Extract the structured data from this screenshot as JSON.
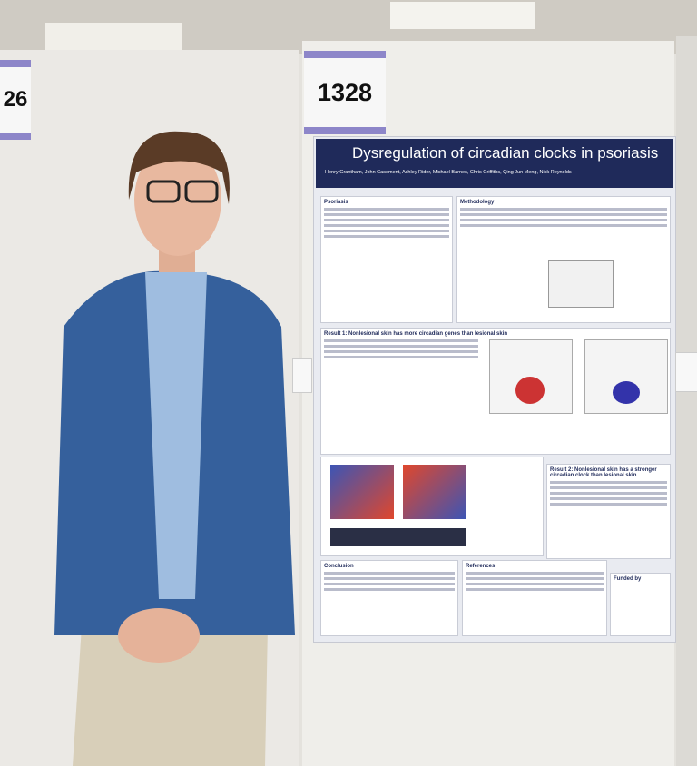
{
  "tags": {
    "left": "26",
    "right": "1328"
  },
  "poster": {
    "title": "Dysregulation of circadian clocks in psoriasis",
    "authors": "Henry Grantham, John Casement, Ashley Rider, Michael Barnes, Chris Griffiths, Qing Jun Meng, Nick Reynolds",
    "sections": {
      "intro": "Psoriasis",
      "methods": "Methodology",
      "result1": "Result 1: Nonlesional skin has more circadian genes than lesional skin",
      "result2": "Result 2: Nonlesional skin has a stronger circadian clock than lesional skin",
      "conclusion": "Conclusion",
      "references": "References",
      "funding": "Funded by"
    }
  }
}
